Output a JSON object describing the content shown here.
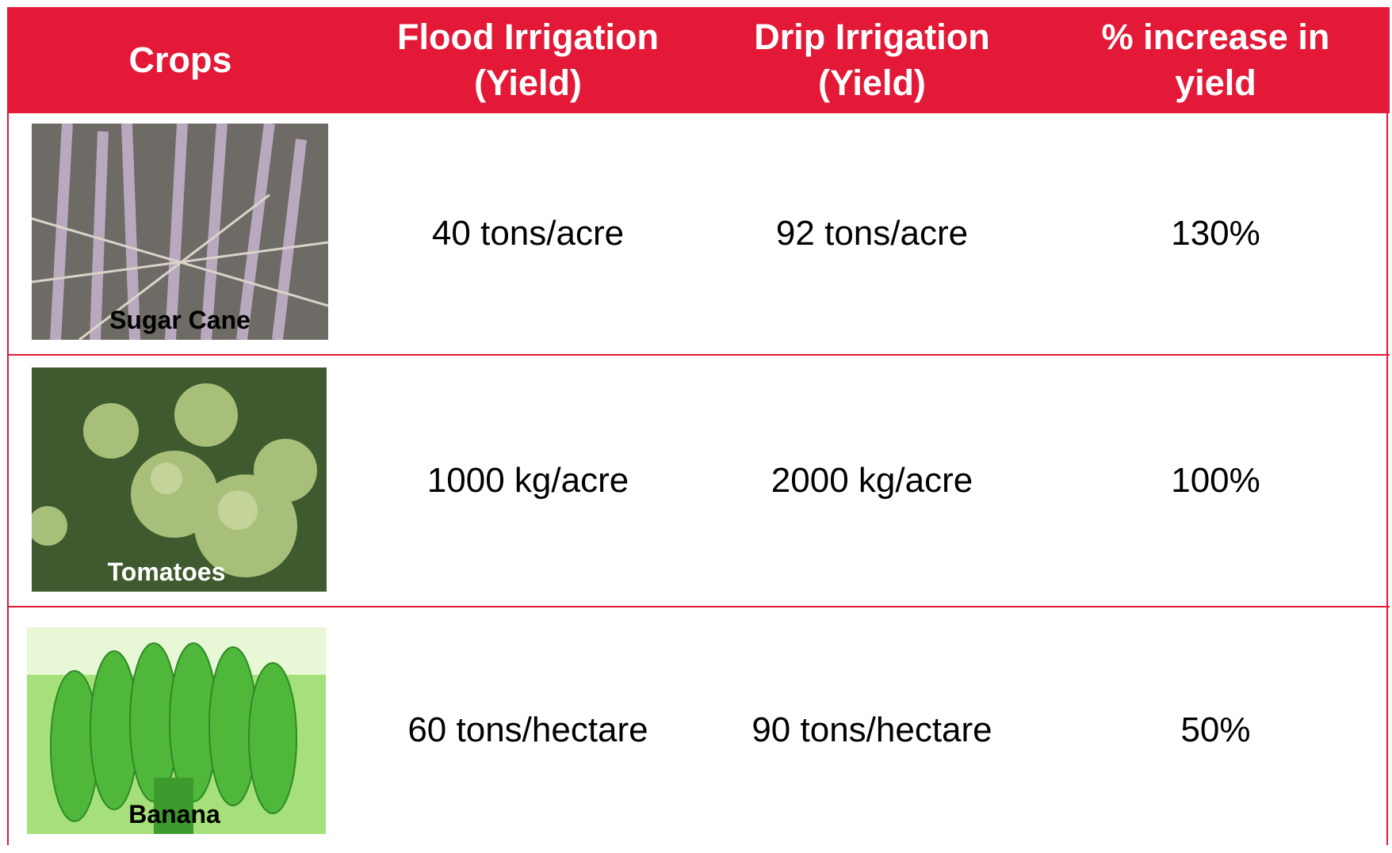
{
  "table": {
    "header": [
      "Crops",
      "Flood Irrigation (Yield)",
      "Drip Irrigation (Yield)",
      "% increase in yield"
    ],
    "rows": [
      [
        "Sugar Cane",
        "40 tons/acre",
        "92 tons/acre",
        "130%"
      ],
      [
        "Tomatoes",
        "1000 kg/acre",
        "2000 kg/acre",
        "100%"
      ],
      [
        "Banana",
        "60 tons/hectare",
        "90 tons/hectare",
        "50%"
      ]
    ]
  }
}
